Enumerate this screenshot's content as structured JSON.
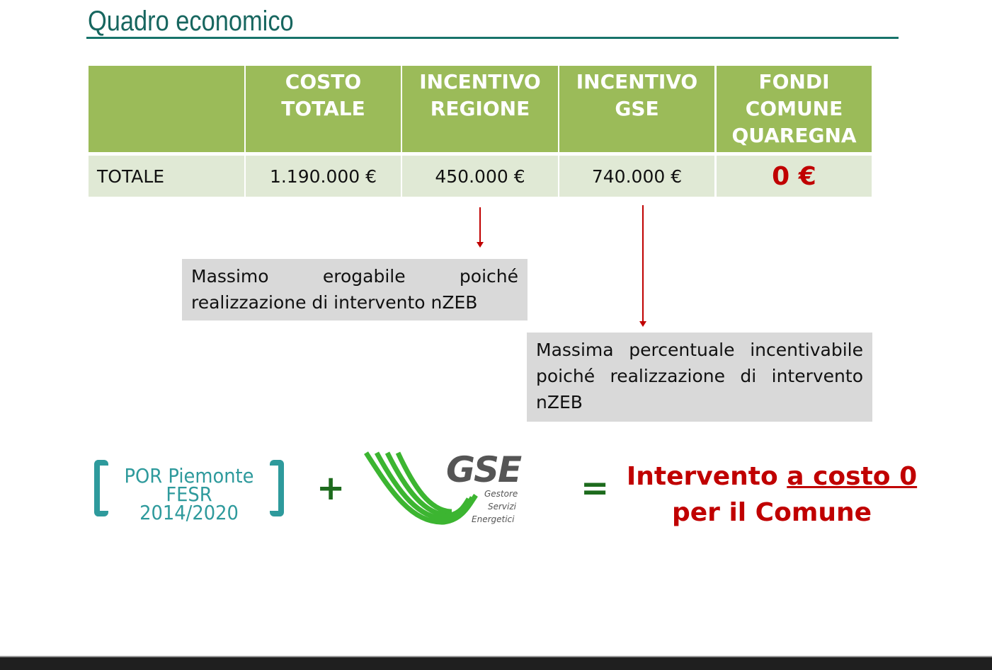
{
  "slide": {
    "title": "Quadro economico",
    "table": {
      "headers": [
        "",
        "COSTO TOTALE",
        "INCENTIVO REGIONE",
        "INCENTIVO GSE",
        "FONDI COMUNE QUAREGNA"
      ],
      "row": {
        "label": "TOTALE",
        "values": [
          "1.190.000 €",
          "450.000 €",
          "740.000 €",
          "0 €"
        ]
      }
    },
    "notes": {
      "regione": "Massimo erogabile poiché realizzazione di intervento nZEB",
      "gse": "Massima percentuale incentivabile poiché realizzazione di intervento nZEB"
    },
    "logos": {
      "por": {
        "line1": "POR Piemonte",
        "line2": "FESR 2014/2020"
      },
      "gse": {
        "name": "GSE",
        "line1": "Gestore",
        "line2": "Servizi",
        "line3": "Energetici"
      }
    },
    "equation": {
      "plus": "+",
      "equals": "=",
      "result_part1": "Intervento ",
      "result_underlined": "a costo 0",
      "result_line2": "per il Comune"
    },
    "colors": {
      "header_green": "#9bbb59",
      "row_green": "#e0e9d5",
      "accent_red": "#c00000",
      "teal": "#17665f"
    }
  }
}
